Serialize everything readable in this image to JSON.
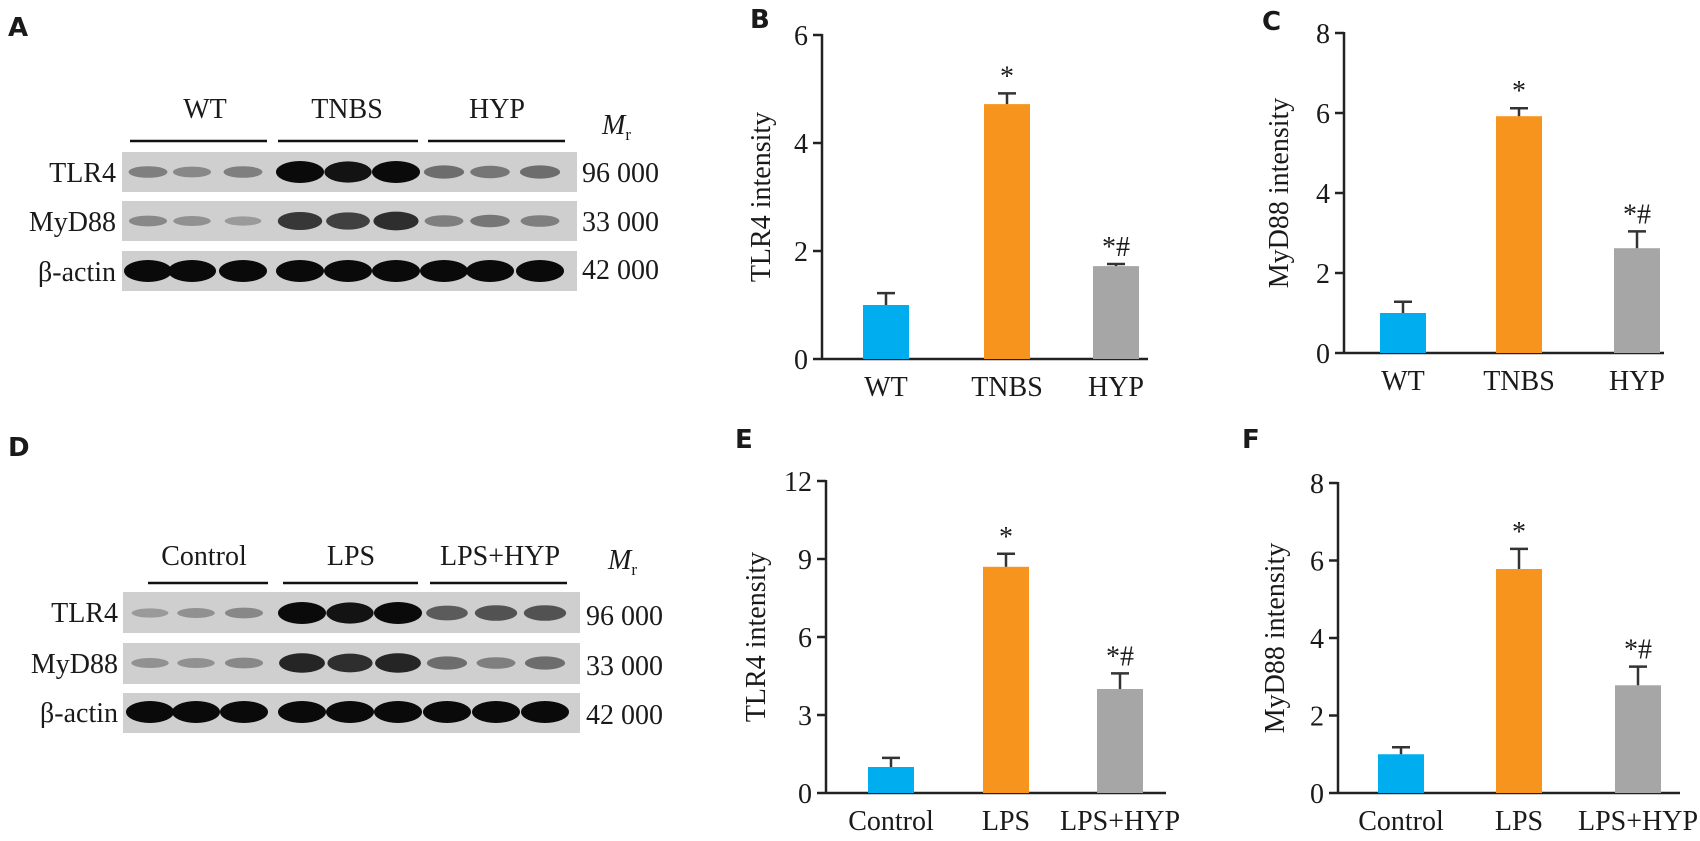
{
  "panels": [
    {
      "letter": "A"
    },
    {
      "letter": "B"
    },
    {
      "letter": "C"
    },
    {
      "letter": "D"
    },
    {
      "letter": "E"
    },
    {
      "letter": "F"
    }
  ],
  "blot_top": {
    "groups": [
      "WT",
      "TNBS",
      "HYP"
    ],
    "mr_label": {
      "main": "M",
      "sub": "r"
    },
    "rows": [
      {
        "label": "TLR4",
        "mw": "96 000",
        "intensity": [
          0.35,
          0.3,
          0.35,
          1.0,
          0.95,
          1.0,
          0.45,
          0.4,
          0.45
        ]
      },
      {
        "label": "MyD88",
        "mw": "33 000",
        "intensity": [
          0.3,
          0.25,
          0.2,
          0.75,
          0.7,
          0.8,
          0.35,
          0.4,
          0.35
        ]
      },
      {
        "label": "β-actin",
        "mw": "42 000",
        "intensity": [
          1.0,
          1.0,
          1.0,
          1.0,
          1.0,
          1.0,
          1.0,
          1.0,
          1.0
        ]
      }
    ]
  },
  "blot_bottom": {
    "groups": [
      "Control",
      "LPS",
      "LPS+HYP"
    ],
    "mr_label": {
      "main": "M",
      "sub": "r"
    },
    "rows": [
      {
        "label": "TLR4",
        "mw": "96 000",
        "intensity": [
          0.2,
          0.25,
          0.3,
          1.0,
          0.95,
          1.0,
          0.55,
          0.6,
          0.6
        ]
      },
      {
        "label": "MyD88",
        "mw": "33 000",
        "intensity": [
          0.25,
          0.25,
          0.3,
          0.85,
          0.8,
          0.85,
          0.45,
          0.35,
          0.45
        ]
      },
      {
        "label": "β-actin",
        "mw": "42 000",
        "intensity": [
          1.0,
          1.0,
          1.0,
          1.0,
          1.0,
          1.0,
          1.0,
          1.0,
          1.0
        ]
      }
    ]
  },
  "colors": {
    "group1": "#00aeef",
    "group2": "#f7941d",
    "group3": "#a6a6a6",
    "axis": "#222222",
    "error": "#333333"
  },
  "chart_data": [
    {
      "panel": "B",
      "type": "bar",
      "categories": [
        "WT",
        "TNBS",
        "HYP"
      ],
      "values": [
        1.0,
        4.72,
        1.72
      ],
      "errors": [
        0.22,
        0.2,
        0.04
      ],
      "annotations": [
        "",
        "*",
        "*#"
      ],
      "ylabel": "TLR4 intensity",
      "ylim": [
        0,
        6
      ],
      "yticks": [
        0,
        2,
        4,
        6
      ],
      "grid": false
    },
    {
      "panel": "C",
      "type": "bar",
      "categories": [
        "WT",
        "TNBS",
        "HYP"
      ],
      "values": [
        1.0,
        5.92,
        2.62
      ],
      "errors": [
        0.28,
        0.2,
        0.42
      ],
      "annotations": [
        "",
        "*",
        "*#"
      ],
      "ylabel": "MyD88 intensity",
      "ylim": [
        0,
        8
      ],
      "yticks": [
        0,
        2,
        4,
        6,
        8
      ],
      "grid": false
    },
    {
      "panel": "E",
      "type": "bar",
      "categories": [
        "Control",
        "LPS",
        "LPS+HYP"
      ],
      "values": [
        1.0,
        8.7,
        4.0
      ],
      "errors": [
        0.35,
        0.5,
        0.6
      ],
      "annotations": [
        "",
        "*",
        "*#"
      ],
      "ylabel": "TLR4 intensity",
      "ylim": [
        0,
        12
      ],
      "yticks": [
        0,
        3,
        6,
        9,
        12
      ],
      "grid": false
    },
    {
      "panel": "F",
      "type": "bar",
      "categories": [
        "Control",
        "LPS",
        "LPS+HYP"
      ],
      "values": [
        1.0,
        5.78,
        2.78
      ],
      "errors": [
        0.18,
        0.52,
        0.48
      ],
      "annotations": [
        "",
        "*",
        "*#"
      ],
      "ylabel": "MyD88 intensity",
      "ylim": [
        0,
        8
      ],
      "yticks": [
        0,
        2,
        4,
        6,
        8
      ],
      "grid": false
    }
  ]
}
